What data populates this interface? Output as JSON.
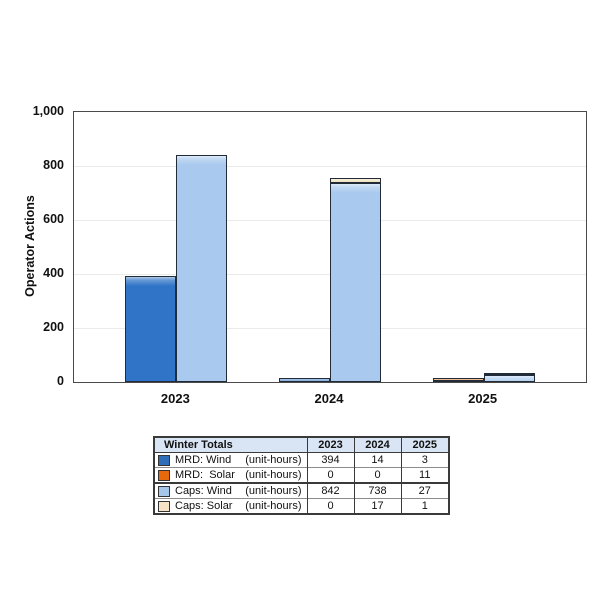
{
  "chart_data": {
    "type": "bar",
    "subtype": "clustered-stacked",
    "title": "",
    "xlabel": "",
    "ylabel": "Operator Actions",
    "categories": [
      "2023",
      "2024",
      "2025"
    ],
    "series": [
      {
        "name": "MRD: Wind",
        "unit": "(unit-hours)",
        "stack": "MRD",
        "color": "#2f74c6",
        "values": [
          394,
          14,
          3
        ]
      },
      {
        "name": "MRD: Solar",
        "unit": "(unit-hours)",
        "stack": "MRD",
        "color": "#e8680c",
        "values": [
          0,
          0,
          11
        ]
      },
      {
        "name": "Caps: Wind",
        "unit": "(unit-hours)",
        "stack": "Caps",
        "color": "#a9caee",
        "values": [
          842,
          738,
          27
        ]
      },
      {
        "name": "Caps: Solar",
        "unit": "(unit-hours)",
        "stack": "Caps",
        "color": "#ead8a6",
        "values": [
          0,
          17,
          1
        ]
      }
    ],
    "ylim": [
      0,
      1000
    ],
    "ytick_values": [
      0,
      200,
      400,
      600,
      800,
      1000
    ],
    "ytick_labels": [
      "0",
      "200",
      "400",
      "600",
      "800",
      "1,000"
    ],
    "grid": true,
    "legend_position": "table-below"
  },
  "table": {
    "header": {
      "title": "Winter Totals",
      "years": [
        "2023",
        "2024",
        "2025"
      ]
    },
    "rows": [
      {
        "swatch": "#2e6db8",
        "label": "MRD: Wind",
        "unit": "(unit-hours)",
        "values": [
          "394",
          "14",
          "3"
        ],
        "sep": "none"
      },
      {
        "swatch": "#e8680c",
        "label": "MRD:  Solar",
        "unit": "(unit-hours)",
        "values": [
          "0",
          "0",
          "11"
        ],
        "sep": "thin"
      },
      {
        "swatch": "#a4c7ea",
        "label": "Caps: Wind",
        "unit": "(unit-hours)",
        "values": [
          "842",
          "738",
          "27"
        ],
        "sep": "group"
      },
      {
        "swatch": "#f8e3c6",
        "label": "Caps: Solar",
        "unit": "(unit-hours)",
        "values": [
          "0",
          "17",
          "1"
        ],
        "sep": "thin"
      }
    ]
  },
  "colors": {
    "grid": "#eaeaea",
    "plot_border": "#4a4a4a",
    "bar_border": "#222b38",
    "table_header_bg": "#d9e5f4"
  }
}
